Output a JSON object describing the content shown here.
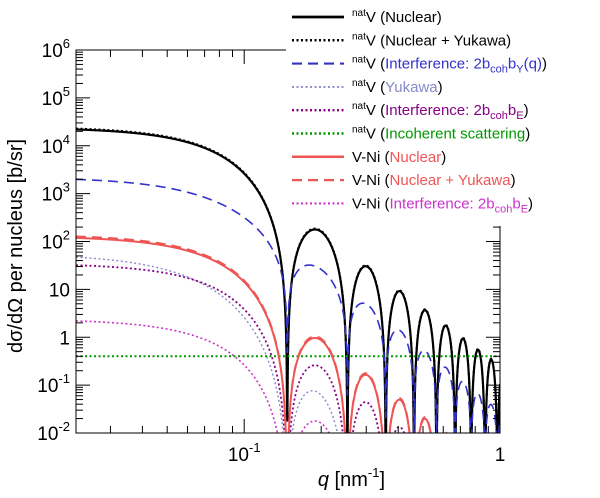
{
  "chart_data": {
    "type": "line",
    "title": "",
    "xlabel_italic": "q",
    "xlabel_rest": " [nm",
    "xlabel_sup": "-1",
    "xlabel_close": "]",
    "ylabel": "dσ/dΩ per nucleus [b/sr]",
    "xscale": "log",
    "yscale": "log",
    "xlim": [
      0.022,
      1.0
    ],
    "ylim": [
      0.01,
      1000000
    ],
    "grid": false,
    "legend_position": "top-right",
    "x_ticks": [
      {
        "value": 0.1,
        "base": "10",
        "exp": "-1"
      },
      {
        "value": 1,
        "base": "1",
        "exp": ""
      }
    ],
    "y_ticks": [
      {
        "value": 1000000,
        "base": "10",
        "exp": "6"
      },
      {
        "value": 100000,
        "base": "10",
        "exp": "5"
      },
      {
        "value": 10000,
        "base": "10",
        "exp": "4"
      },
      {
        "value": 1000,
        "base": "10",
        "exp": "3"
      },
      {
        "value": 100,
        "base": "10",
        "exp": "2"
      },
      {
        "value": 10,
        "base": "10",
        "exp": ""
      },
      {
        "value": 1,
        "base": "1",
        "exp": ""
      },
      {
        "value": 0.1,
        "base": "10",
        "exp": "-1"
      },
      {
        "value": 0.01,
        "base": "10",
        "exp": "-2"
      }
    ],
    "series": [
      {
        "pre": "nat",
        "sample": "V",
        "label_parts": [
          {
            "t": "Nuclear"
          }
        ],
        "color": "#000000",
        "dash": "solid",
        "width": 2.2,
        "model": "nuclear",
        "amp": 24000
      },
      {
        "pre": "nat",
        "sample": "V",
        "label_parts": [
          {
            "t": "Nuclear + Yukawa"
          }
        ],
        "color": "#000000",
        "dash": "dotted",
        "width": 2.0,
        "model": "nuclear",
        "amp": 25000
      },
      {
        "pre": "nat",
        "sample": "V",
        "label_parts": [
          {
            "t": "Interference: 2b"
          },
          {
            "t": "coh",
            "sub": true
          },
          {
            "t": "b"
          },
          {
            "t": "Y",
            "sub": true
          },
          {
            "t": "(q)"
          }
        ],
        "color": "#3333cc",
        "dash": "dashed",
        "width": 1.6,
        "model": "interference_y",
        "amp": 2200
      },
      {
        "pre": "nat",
        "sample": "V",
        "label_parts": [
          {
            "t": "Yukawa"
          }
        ],
        "color": "#8888cc",
        "dash": "dotted",
        "width": 1.4,
        "model": "yukawa",
        "amp": 55
      },
      {
        "pre": "nat",
        "sample": "V",
        "label_parts": [
          {
            "t": "Interference: 2b"
          },
          {
            "t": "coh",
            "sub": true
          },
          {
            "t": "b"
          },
          {
            "t": "E",
            "sub": true
          }
        ],
        "color": "#880088",
        "dash": "dotted",
        "width": 1.8,
        "model": "nuclear",
        "amp": 35
      },
      {
        "pre": "nat",
        "sample": "V",
        "label_parts": [
          {
            "t": "Incoherent scattering"
          }
        ],
        "color": "#009900",
        "dash": "dotted",
        "width": 2.0,
        "model": "constant",
        "amp": 0.4
      },
      {
        "pre": "",
        "sample": "V-Ni",
        "label_parts": [
          {
            "t": "Nuclear"
          }
        ],
        "color": "#ee5555",
        "dash": "solid",
        "width": 2.0,
        "model": "nuclear",
        "amp": 130
      },
      {
        "pre": "",
        "sample": "V-Ni",
        "label_parts": [
          {
            "t": "Nuclear + Yukawa"
          }
        ],
        "color": "#ee5555",
        "dash": "dashed",
        "width": 1.8,
        "model": "nuclear",
        "amp": 140
      },
      {
        "pre": "",
        "sample": "V-Ni",
        "label_parts": [
          {
            "t": "Interference: 2b"
          },
          {
            "t": "coh",
            "sub": true
          },
          {
            "t": "b"
          },
          {
            "t": "E",
            "sub": true
          }
        ],
        "color": "#cc33cc",
        "dash": "dotted",
        "width": 1.6,
        "model": "nuclear",
        "amp": 2.4
      }
    ]
  }
}
